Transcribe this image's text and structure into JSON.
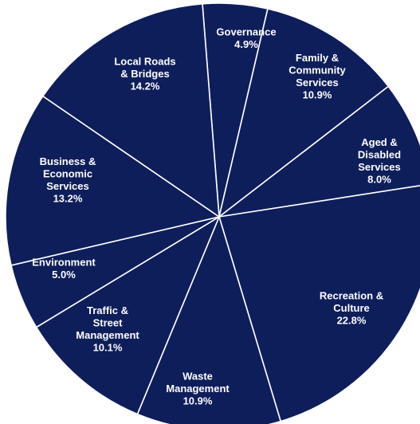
{
  "chart_data": {
    "type": "pie",
    "title": "",
    "slices": [
      {
        "label": "Governance",
        "lines": [
          "Governance"
        ],
        "value": 4.9,
        "value_text": "4.9%"
      },
      {
        "label": "Family & Community Services",
        "lines": [
          "Family &",
          "Community",
          "Services"
        ],
        "value": 10.9,
        "value_text": "10.9%"
      },
      {
        "label": "Aged & Disabled Services",
        "lines": [
          "Aged &",
          "Disabled",
          "Services"
        ],
        "value": 8.0,
        "value_text": "8.0%"
      },
      {
        "label": "Recreation & Culture",
        "lines": [
          "Recreation &",
          "Culture"
        ],
        "value": 22.8,
        "value_text": "22.8%"
      },
      {
        "label": "Waste Management",
        "lines": [
          "Waste",
          "Management"
        ],
        "value": 10.9,
        "value_text": "10.9%"
      },
      {
        "label": "Traffic & Street Management",
        "lines": [
          "Traffic &",
          "Street",
          "Management"
        ],
        "value": 10.1,
        "value_text": "10.1%"
      },
      {
        "label": "Environment",
        "lines": [
          "Environment"
        ],
        "value": 5.0,
        "value_text": "5.0%"
      },
      {
        "label": "Business & Economic Services",
        "lines": [
          "Business &",
          "Economic",
          "Services"
        ],
        "value": 13.2,
        "value_text": "13.2%"
      },
      {
        "label": "Local Roads & Bridges",
        "lines": [
          "Local Roads",
          "& Bridges"
        ],
        "value": 14.2,
        "value_text": "14.2%"
      }
    ],
    "colors": {
      "fill": "#0e1e5b",
      "stroke": "#ffffff"
    },
    "legend": "none"
  }
}
